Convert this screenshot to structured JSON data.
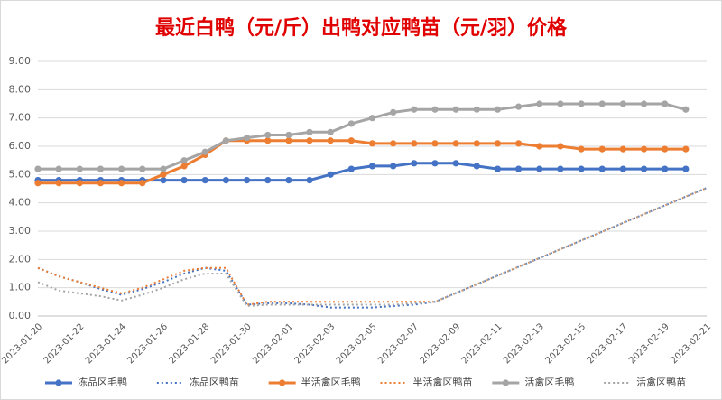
{
  "chart_data": {
    "type": "line",
    "title": "最近白鸭（元/斤）出鸭对应鸭苗（元/羽）价格",
    "categories": [
      "2023-01-20",
      null,
      "2023-01-22",
      null,
      "2023-01-24",
      null,
      "2023-01-26",
      null,
      "2023-01-28",
      null,
      "2023-01-30",
      null,
      "2023-02-01",
      null,
      "2023-02-03",
      null,
      "2023-02-05",
      null,
      "2023-02-07",
      null,
      "2023-02-09",
      null,
      "2023-02-11",
      null,
      "2023-02-13",
      null,
      "2023-02-15",
      null,
      "2023-02-17",
      null,
      "2023-02-19",
      null,
      "2023-02-21"
    ],
    "series": [
      {
        "name": "冻品区毛鸭",
        "color": "#4472c4",
        "dashed": false,
        "markers": true,
        "values": [
          4.8,
          4.8,
          4.8,
          4.8,
          4.8,
          4.8,
          4.8,
          4.8,
          4.8,
          4.8,
          4.8,
          4.8,
          4.8,
          4.8,
          5.0,
          5.2,
          5.3,
          5.3,
          5.4,
          5.4,
          5.4,
          5.3,
          5.2,
          5.2,
          5.2,
          5.2,
          5.2,
          5.2,
          5.2,
          5.2,
          5.2,
          5.2,
          null
        ]
      },
      {
        "name": "冻品区鸭苗",
        "color": "#4472c4",
        "dashed": true,
        "markers": false,
        "values": [
          1.7,
          1.4,
          1.2,
          0.95,
          0.75,
          0.95,
          1.2,
          1.5,
          1.7,
          1.6,
          0.4,
          0.45,
          0.45,
          0.4,
          0.3,
          0.3,
          0.3,
          0.35,
          0.4,
          0.5,
          0.81,
          1.12,
          1.43,
          1.74,
          2.05,
          2.36,
          2.67,
          2.98,
          3.29,
          3.6,
          3.91,
          4.22,
          4.53
        ]
      },
      {
        "name": "半活禽区毛鸭",
        "color": "#ed7d31",
        "dashed": false,
        "markers": true,
        "values": [
          4.7,
          4.7,
          4.7,
          4.7,
          4.7,
          4.7,
          5.0,
          5.3,
          5.7,
          6.2,
          6.2,
          6.2,
          6.2,
          6.2,
          6.2,
          6.2,
          6.1,
          6.1,
          6.1,
          6.1,
          6.1,
          6.1,
          6.1,
          6.1,
          6.0,
          6.0,
          5.9,
          5.9,
          5.9,
          5.9,
          5.9,
          5.9,
          null
        ]
      },
      {
        "name": "半活禽区鸭苗",
        "color": "#ed7d31",
        "dashed": true,
        "markers": false,
        "values": [
          1.7,
          1.4,
          1.2,
          1.0,
          0.8,
          1.0,
          1.3,
          1.6,
          1.7,
          1.7,
          0.4,
          0.5,
          0.5,
          0.5,
          0.5,
          0.5,
          0.5,
          0.5,
          0.5,
          0.5,
          0.81,
          1.12,
          1.43,
          1.74,
          2.05,
          2.36,
          2.67,
          2.98,
          3.29,
          3.6,
          3.91,
          4.22,
          4.53
        ]
      },
      {
        "name": "活禽区毛鸭",
        "color": "#a5a5a5",
        "dashed": false,
        "markers": true,
        "values": [
          5.2,
          5.2,
          5.2,
          5.2,
          5.2,
          5.2,
          5.2,
          5.5,
          5.8,
          6.2,
          6.3,
          6.4,
          6.4,
          6.5,
          6.5,
          6.8,
          7.0,
          7.2,
          7.3,
          7.3,
          7.3,
          7.3,
          7.3,
          7.4,
          7.5,
          7.5,
          7.5,
          7.5,
          7.5,
          7.5,
          7.5,
          7.3,
          null
        ]
      },
      {
        "name": "活禽区鸭苗",
        "color": "#a5a5a5",
        "dashed": true,
        "markers": false,
        "values": [
          1.2,
          0.9,
          0.8,
          0.7,
          0.55,
          0.75,
          1.0,
          1.3,
          1.5,
          1.5,
          0.35,
          0.4,
          0.4,
          0.4,
          0.4,
          0.4,
          0.4,
          0.4,
          0.45,
          0.5,
          0.81,
          1.12,
          1.43,
          1.74,
          2.05,
          2.36,
          2.67,
          2.98,
          3.29,
          3.6,
          3.91,
          4.22,
          4.53
        ]
      }
    ],
    "ylim": [
      0,
      9
    ],
    "yticks": [
      {
        "value": 0,
        "label": "0.00"
      },
      {
        "value": 1,
        "label": "1.00"
      },
      {
        "value": 2,
        "label": "2.00"
      },
      {
        "value": 3,
        "label": "3.00"
      },
      {
        "value": 4,
        "label": "4.00"
      },
      {
        "value": 5,
        "label": "5.00"
      },
      {
        "value": 6,
        "label": "6.00"
      },
      {
        "value": 7,
        "label": "7.00"
      },
      {
        "value": 8,
        "label": "8.00"
      },
      {
        "value": 9,
        "label": "9.00"
      }
    ],
    "grid": true,
    "legend": "bottom"
  }
}
